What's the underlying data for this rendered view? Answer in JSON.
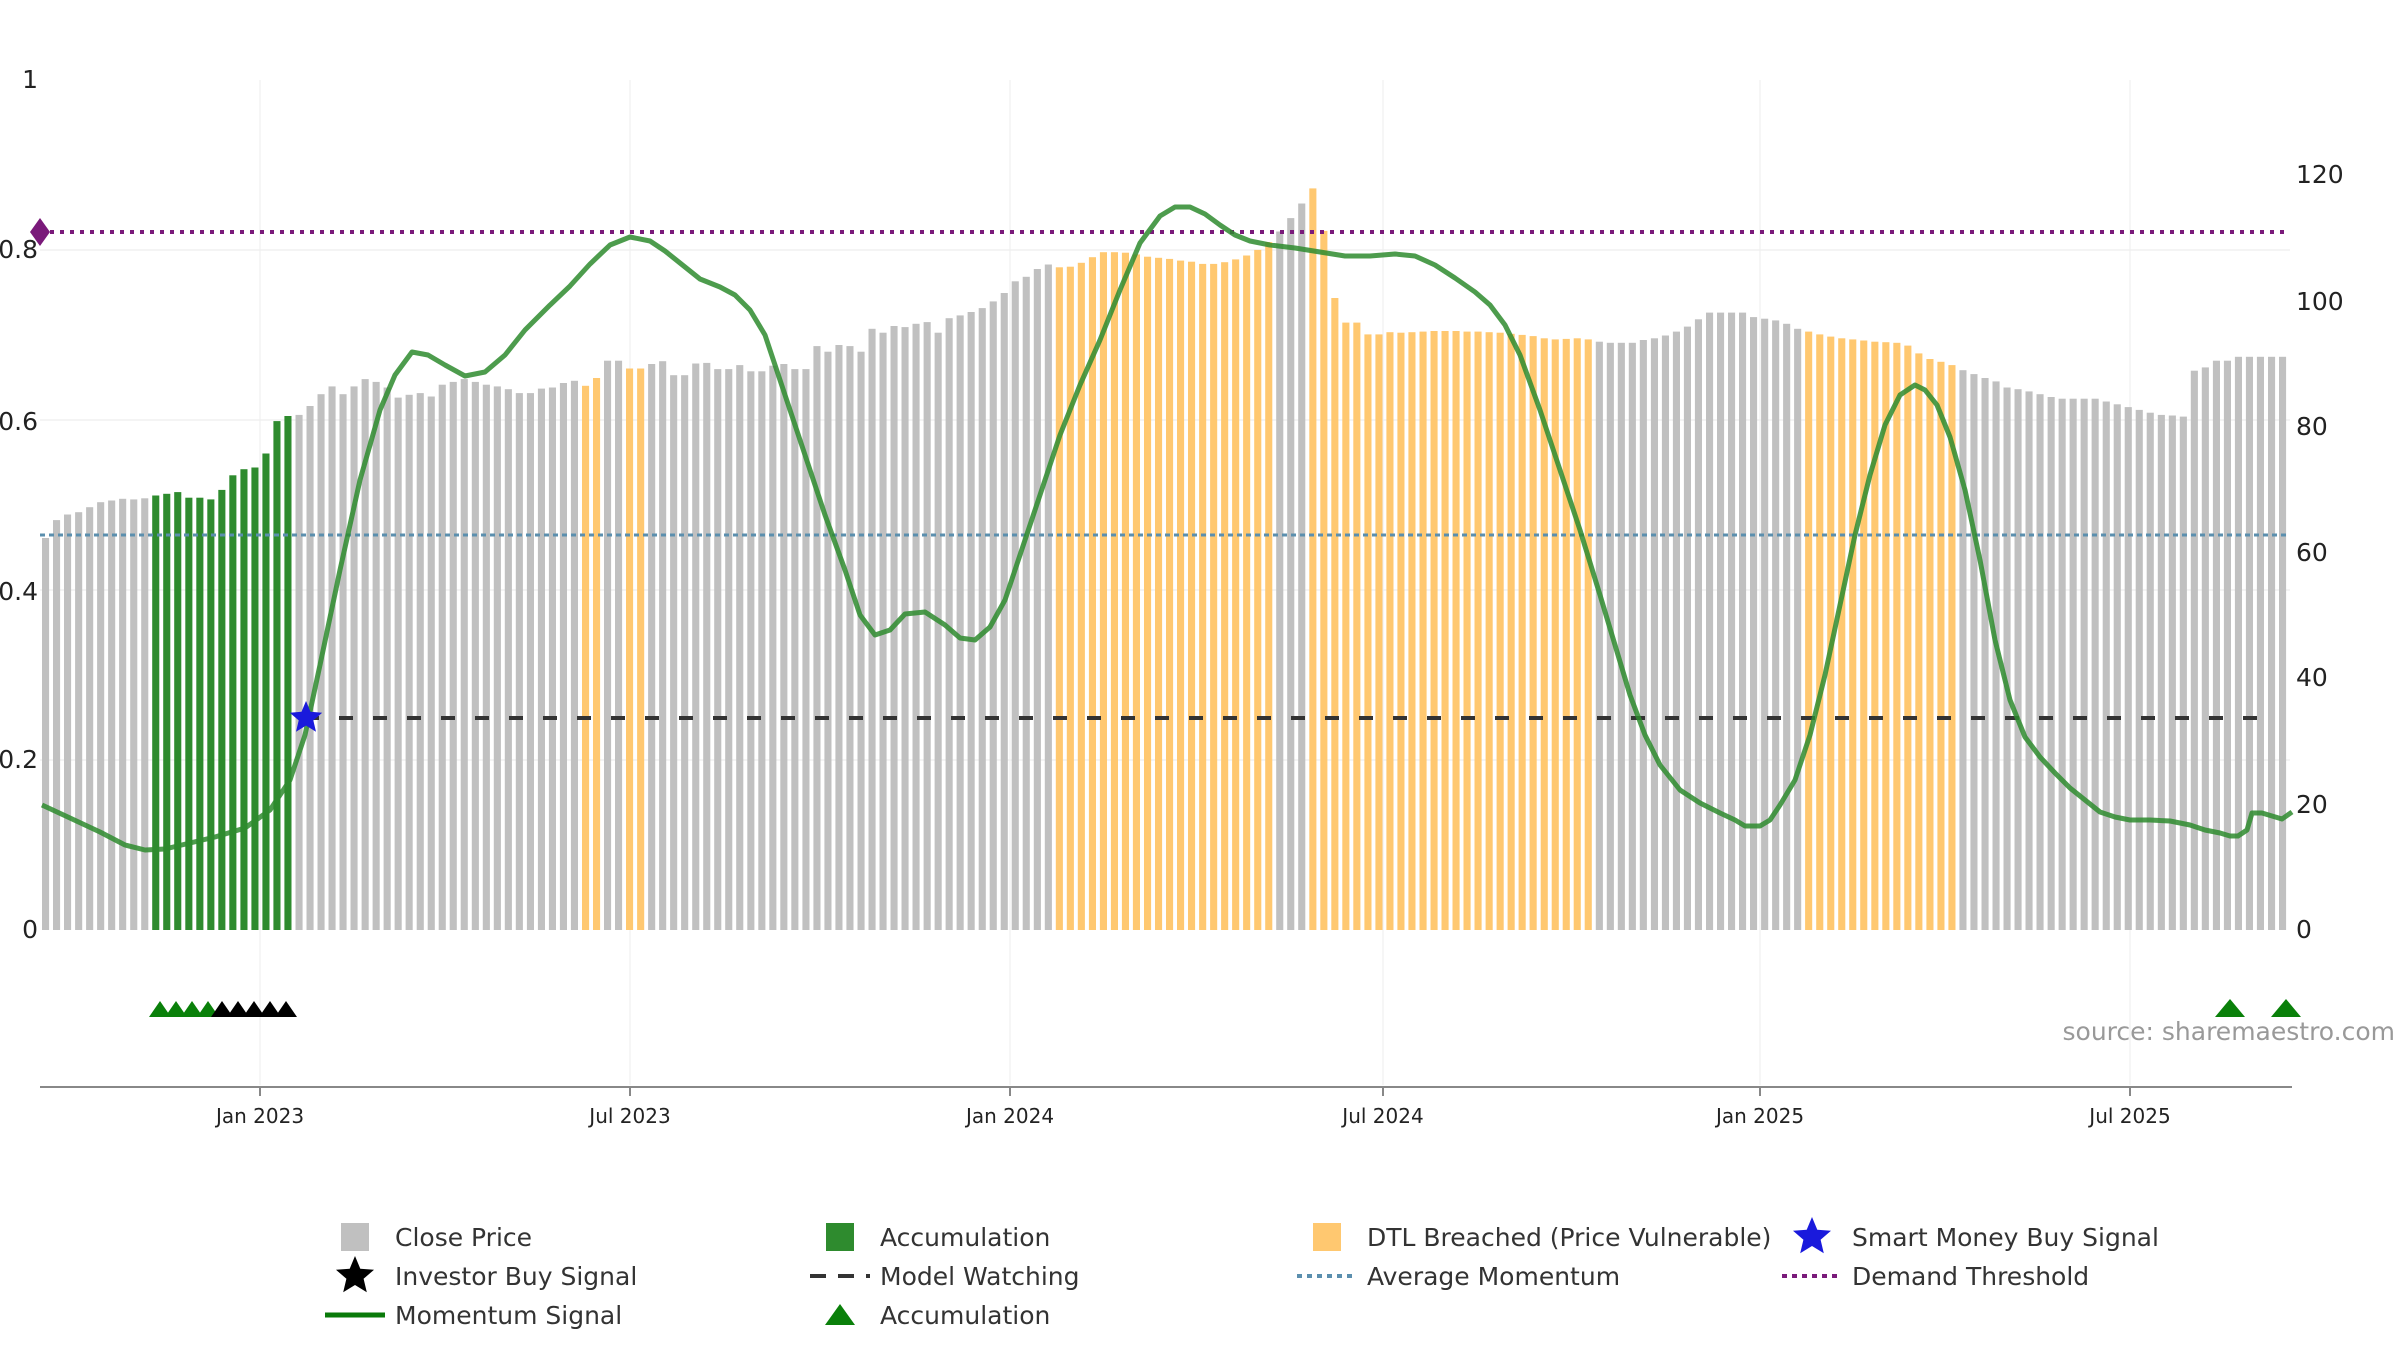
{
  "source_label": "source: sharemaestro.com",
  "chart_data": {
    "type": "bar",
    "x_tick_labels": [
      "Jan 2023",
      "Jul 2023",
      "Jan 2024",
      "Jul 2024",
      "Jan 2025",
      "Jul 2025"
    ],
    "y_left": {
      "ticks": [
        "0",
        "0.2",
        "0.4",
        "0.6",
        "0.8",
        "1"
      ],
      "range": [
        0,
        1
      ]
    },
    "y_right": {
      "ticks": [
        "0",
        "20",
        "40",
        "60",
        "80",
        "100",
        "120"
      ],
      "range": [
        0,
        135
      ]
    },
    "colors": {
      "close_price": "#c0c0c0",
      "accumulation": "#2e8b2e",
      "dtl_breached": "#ffc870",
      "momentum": "#2e8b2e",
      "momentum_dark": "#0a7a0a",
      "average_momentum": "#5b8fae",
      "demand_threshold": "#7a1a7a",
      "model_watching": "#333333",
      "smart_money": "#1a1adc",
      "investor_buy": "#000000",
      "accumulation_marker": "#0a800a"
    },
    "series": [
      {
        "name": "Close Price",
        "values": [
          70.1,
          73.3,
          74.3,
          74.7,
          75.6,
          76.5,
          76.8,
          77.1,
          77.0,
          77.2,
          77.7,
          78.0,
          78.3,
          77.3,
          77.3,
          77.0,
          78.7,
          81.3,
          82.4,
          82.7,
          85.2,
          91.0,
          91.9,
          92.1,
          93.7,
          95.8,
          97.2,
          95.8,
          97.2,
          98.5,
          98.0,
          97.0,
          95.2,
          95.7,
          96.0,
          95.4,
          97.5,
          98.0,
          98.5,
          98.0,
          97.5,
          97.2,
          96.7,
          96.0,
          96.0,
          96.8,
          97.0,
          97.8,
          98.2,
          97.3,
          98.7,
          101.8,
          101.8,
          100.4,
          100.4,
          101.2,
          101.7,
          99.2,
          99.2,
          101.3,
          101.4,
          100.3,
          100.3,
          101.0,
          99.9,
          99.9,
          100.9,
          101.2,
          100.3,
          100.3,
          104.4,
          103.4,
          104.6,
          104.4,
          103.4,
          107.5,
          106.8,
          108.0,
          107.8,
          108.4,
          108.7,
          106.8,
          109.4,
          109.9,
          110.5,
          111.2,
          112.4,
          113.9,
          116.0,
          116.8,
          118.2,
          119.0,
          118.5,
          118.6,
          119.3,
          120.3,
          121.2,
          121.2,
          121.1,
          120.8,
          120.4,
          120.2,
          120.0,
          119.7,
          119.5,
          119.1,
          119.1,
          119.4,
          119.9,
          120.6,
          121.6,
          123.0,
          124.9,
          127.3,
          129.9,
          132.6,
          125.0,
          113.0,
          108.6,
          108.6,
          106.5,
          106.5,
          106.9,
          106.8,
          106.9,
          107.0,
          107.1,
          107.1,
          107.1,
          107.0,
          107.0,
          106.9,
          106.8,
          106.6,
          106.4,
          106.2,
          105.8,
          105.6,
          105.7,
          105.8,
          105.6,
          105.2,
          105.0,
          105.0,
          105.0,
          105.5,
          105.8,
          106.3,
          107.0,
          107.9,
          109.2,
          110.4,
          110.4,
          110.4,
          110.4,
          109.6,
          109.3,
          109.0,
          108.4,
          107.5,
          107.0,
          106.5,
          106.1,
          105.8,
          105.6,
          105.4,
          105.2,
          105.1,
          105.0,
          104.5,
          103.1,
          102.1,
          101.6,
          101.0,
          100.1,
          99.4,
          98.7,
          98.1,
          97.0,
          96.7,
          96.3,
          95.8,
          95.3,
          95.0,
          95.0,
          95.0,
          95.0,
          94.5,
          94.0,
          93.5,
          93.0,
          92.5,
          92.1,
          92.0,
          91.8,
          100.0,
          100.6,
          101.8,
          101.8,
          102.5,
          102.5,
          102.5,
          102.5,
          102.5
        ],
        "note_shown_by": "bar height against right axis"
      }
    ]
  }
}
